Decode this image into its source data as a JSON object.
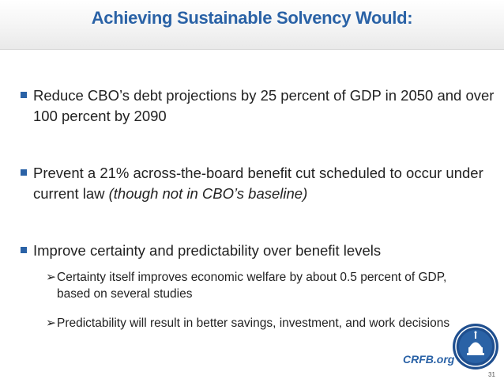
{
  "slide": {
    "title": "Achieving Sustainable Solvency Would:",
    "bullets": [
      {
        "text": "Reduce CBO’s debt projections by 25 percent of GDP in 2050 and over 100 percent by 2090"
      },
      {
        "text": "Prevent a 21% across-the-board benefit cut scheduled to occur under current law ",
        "italic": "(though not in CBO’s baseline)"
      },
      {
        "text": "Improve certainty and predictability over benefit levels"
      }
    ],
    "subbullets": [
      {
        "arrow": "➢",
        "text": "Certainty itself improves economic welfare by about 0.5 percent of GDP, based on several studies"
      },
      {
        "arrow": "➢",
        "text": "Predictability will result in better savings, investment, and work decisions"
      }
    ],
    "footer_link": "CRFB.org",
    "page_number": "31",
    "colors": {
      "accent": "#2a62a6",
      "text": "#222222"
    },
    "seal_icon": "capitol-seal-icon"
  }
}
